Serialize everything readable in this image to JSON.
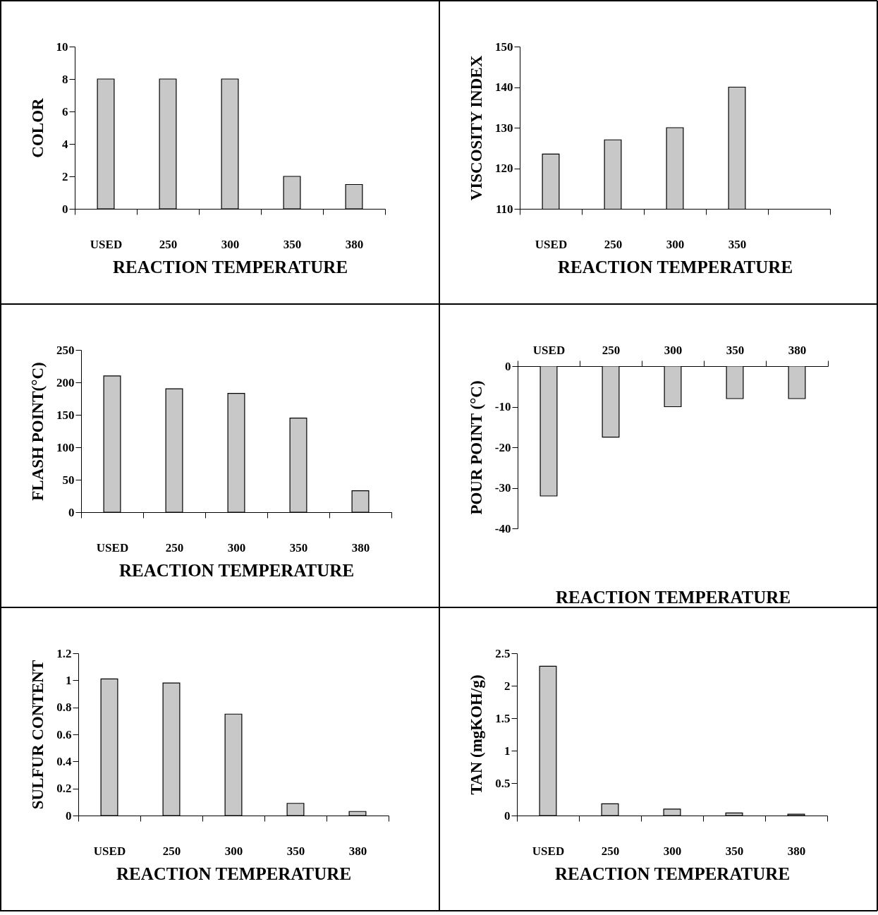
{
  "chart_data": [
    {
      "type": "bar",
      "categories": [
        "USED",
        "250",
        "300",
        "350",
        "380"
      ],
      "values": [
        8,
        8,
        8,
        2,
        1.5
      ],
      "color": "#c8c8c8",
      "ylim": [
        0,
        10
      ],
      "yticks": [
        0,
        2,
        4,
        6,
        8,
        10
      ],
      "ylabel": "COLOR",
      "xlabel": "REACTION  TEMPERATURE"
    },
    {
      "type": "bar",
      "categories": [
        "USED",
        "250",
        "300",
        "350",
        null
      ],
      "values": [
        123.5,
        127,
        130,
        140,
        null
      ],
      "color": "#c8c8c8",
      "ylim": [
        110,
        150
      ],
      "yticks": [
        110,
        120,
        130,
        140,
        150
      ],
      "ylabel": "VISCOSITY  INDEX",
      "xlabel": "REACTION  TEMPERATURE"
    },
    {
      "type": "bar",
      "categories": [
        "USED",
        "250",
        "300",
        "350",
        "380"
      ],
      "values": [
        210,
        190,
        183,
        145,
        33
      ],
      "color": "#c8c8c8",
      "ylim": [
        0,
        250
      ],
      "yticks": [
        0,
        50,
        100,
        150,
        200,
        250
      ],
      "ylabel": "FLASH POINT(°C)",
      "xlabel": "REACTION  TEMPERATURE"
    },
    {
      "type": "bar",
      "categories": [
        "USED",
        "250",
        "300",
        "350",
        "380"
      ],
      "values": [
        -32,
        -17.5,
        -10,
        -8,
        -8
      ],
      "color": "#c8c8c8",
      "ylim": [
        -40,
        0
      ],
      "yticks": [
        -40,
        -30,
        -20,
        -10,
        0
      ],
      "ylabel": "POUR  POINT (°C)",
      "xlabel": "REACTION  TEMPERATURE"
    },
    {
      "type": "bar",
      "categories": [
        "USED",
        "250",
        "300",
        "350",
        "380"
      ],
      "values": [
        1.01,
        0.98,
        0.75,
        0.09,
        0.03
      ],
      "color": "#c8c8c8",
      "ylim": [
        0,
        1.2
      ],
      "yticks": [
        0,
        0.2,
        0.4,
        0.6,
        0.8,
        1,
        1.2
      ],
      "ylabel": "SULFUR  CONTENT",
      "xlabel": "REACTION  TEMPERATURE"
    },
    {
      "type": "bar",
      "categories": [
        "USED",
        "250",
        "300",
        "350",
        "380"
      ],
      "values": [
        2.3,
        0.18,
        0.1,
        0.04,
        0.02
      ],
      "color": "#c8c8c8",
      "ylim": [
        0,
        2.5
      ],
      "yticks": [
        0,
        0.5,
        1,
        1.5,
        2,
        2.5
      ],
      "ylabel": "TAN (mgKOH/g)",
      "xlabel": "REACTION  TEMPERATURE"
    }
  ]
}
